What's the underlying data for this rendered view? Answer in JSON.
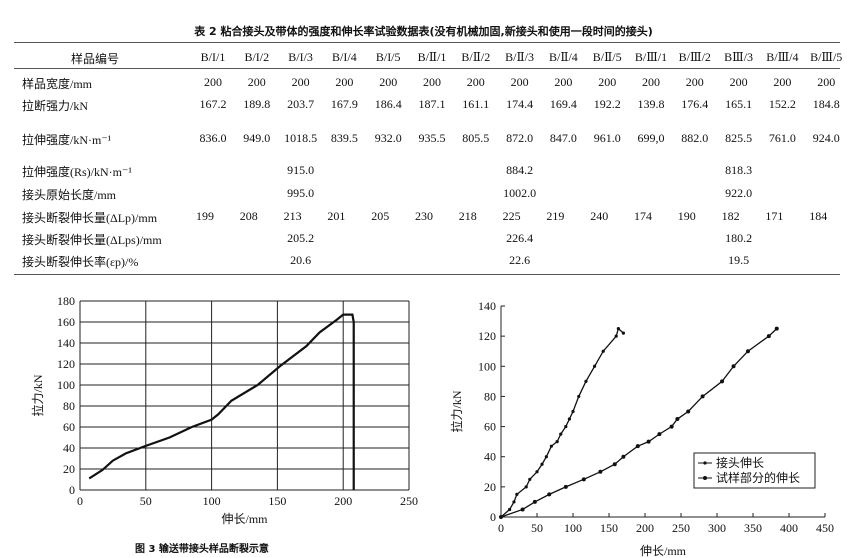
{
  "table": {
    "title": "表 2  粘合接头及带体的强度和伸长率试验数据表(没有机械加固,新接头和使用一段时间的接头)",
    "header_label": "样品编号",
    "columns": [
      "B/I/1",
      "B/I/2",
      "B/I/3",
      "B/I/4",
      "B/I/5",
      "B/Ⅱ/1",
      "B/Ⅱ/2",
      "B/Ⅱ/3",
      "B/Ⅱ/4",
      "B/Ⅱ/5",
      "B/Ⅲ/1",
      "B/Ⅲ/2",
      "BⅢ/3",
      "B/Ⅲ/4",
      "B/Ⅲ/5"
    ],
    "rows": [
      {
        "label": "样品宽度/mm",
        "values": [
          "200",
          "200",
          "200",
          "200",
          "200",
          "200",
          "200",
          "200",
          "200",
          "200",
          "200",
          "200",
          "200",
          "200",
          "200"
        ]
      },
      {
        "label": "拉断强力/kN",
        "values": [
          "167.2",
          "189.8",
          "203.7",
          "167.9",
          "186.4",
          "187.1",
          "161.1",
          "174.4",
          "169.4",
          "192.2",
          "139.8",
          "176.4",
          "165.1",
          "152.2",
          "184.8"
        ]
      },
      {
        "label": "拉伸强度/kN·m⁻¹",
        "values": [
          "836.0",
          "949.0",
          "1018.5",
          "839.5",
          "932.0",
          "935.5",
          "805.5",
          "872.0",
          "847.0",
          "961.0",
          "699,0",
          "882.0",
          "825.5",
          "761.0",
          "924.0"
        ]
      },
      {
        "label": "拉伸强度(Rs)/kN·m⁻¹",
        "group_values": [
          "915.0",
          "884.2",
          "818.3"
        ]
      },
      {
        "label": "接头原始长度/mm",
        "group_values": [
          "995.0",
          "1002.0",
          "922.0"
        ]
      },
      {
        "label": "接头断裂伸长量(ΔLp)/mm",
        "values": [
          "199",
          "208",
          "213",
          "201",
          "205",
          "230",
          "218",
          "225",
          "219",
          "240",
          "174",
          "190",
          "182",
          "171",
          "184"
        ]
      },
      {
        "label": "接头断裂伸长量(ΔLps)/mm",
        "group_values": [
          "205.2",
          "226.4",
          "180.2"
        ]
      },
      {
        "label": "接头断裂伸长率(εp)/%",
        "group_values": [
          "20.6",
          "22.6",
          "19.5"
        ]
      }
    ]
  },
  "chart_data": [
    {
      "type": "line",
      "caption": "图 3  输送带接头样品断裂示意",
      "xlabel": "伸长/mm",
      "ylabel": "拉力/kN",
      "xlim": [
        0,
        250
      ],
      "ylim": [
        0,
        180
      ],
      "xticks": [
        0,
        50,
        100,
        150,
        200,
        250
      ],
      "yticks": [
        0,
        20,
        40,
        60,
        80,
        100,
        120,
        140,
        160,
        180
      ],
      "grid": true,
      "series": [
        {
          "x": [
            7,
            17,
            25,
            35,
            50,
            68,
            85,
            100,
            105,
            115,
            135,
            152,
            172,
            182,
            195,
            200,
            207,
            208,
            208
          ],
          "y": [
            11,
            19,
            28,
            35,
            42,
            50,
            60,
            67,
            72,
            85,
            100,
            118,
            137,
            150,
            162,
            167,
            167,
            160,
            0
          ]
        }
      ]
    },
    {
      "type": "line",
      "xlabel": "伸长/mm",
      "ylabel": "拉力/kN",
      "xlim": [
        0,
        450
      ],
      "ylim": [
        0,
        140
      ],
      "xticks": [
        0,
        50,
        100,
        150,
        200,
        250,
        300,
        350,
        400,
        450
      ],
      "yticks": [
        0,
        20,
        40,
        60,
        80,
        100,
        120,
        140
      ],
      "grid": false,
      "legend": "right",
      "series": [
        {
          "name": "接头伸长",
          "x": [
            0,
            12,
            18,
            22,
            35,
            40,
            50,
            57,
            63,
            70,
            78,
            83,
            90,
            95,
            100,
            108,
            118,
            130,
            142,
            160,
            163,
            170
          ],
          "y": [
            0,
            5,
            10,
            15,
            20,
            25,
            30,
            35,
            40,
            47,
            50,
            55,
            60,
            65,
            70,
            80,
            90,
            100,
            110,
            120,
            125,
            122
          ]
        },
        {
          "name": "试样部分的伸长",
          "x": [
            0,
            30,
            47,
            67,
            90,
            115,
            138,
            158,
            170,
            190,
            205,
            220,
            237,
            245,
            260,
            280,
            307,
            323,
            343,
            372,
            383
          ],
          "y": [
            0,
            5,
            10,
            15,
            20,
            25,
            30,
            35,
            40,
            47,
            50,
            55,
            60,
            65,
            70,
            80,
            90,
            100,
            110,
            120,
            125
          ]
        }
      ]
    }
  ]
}
